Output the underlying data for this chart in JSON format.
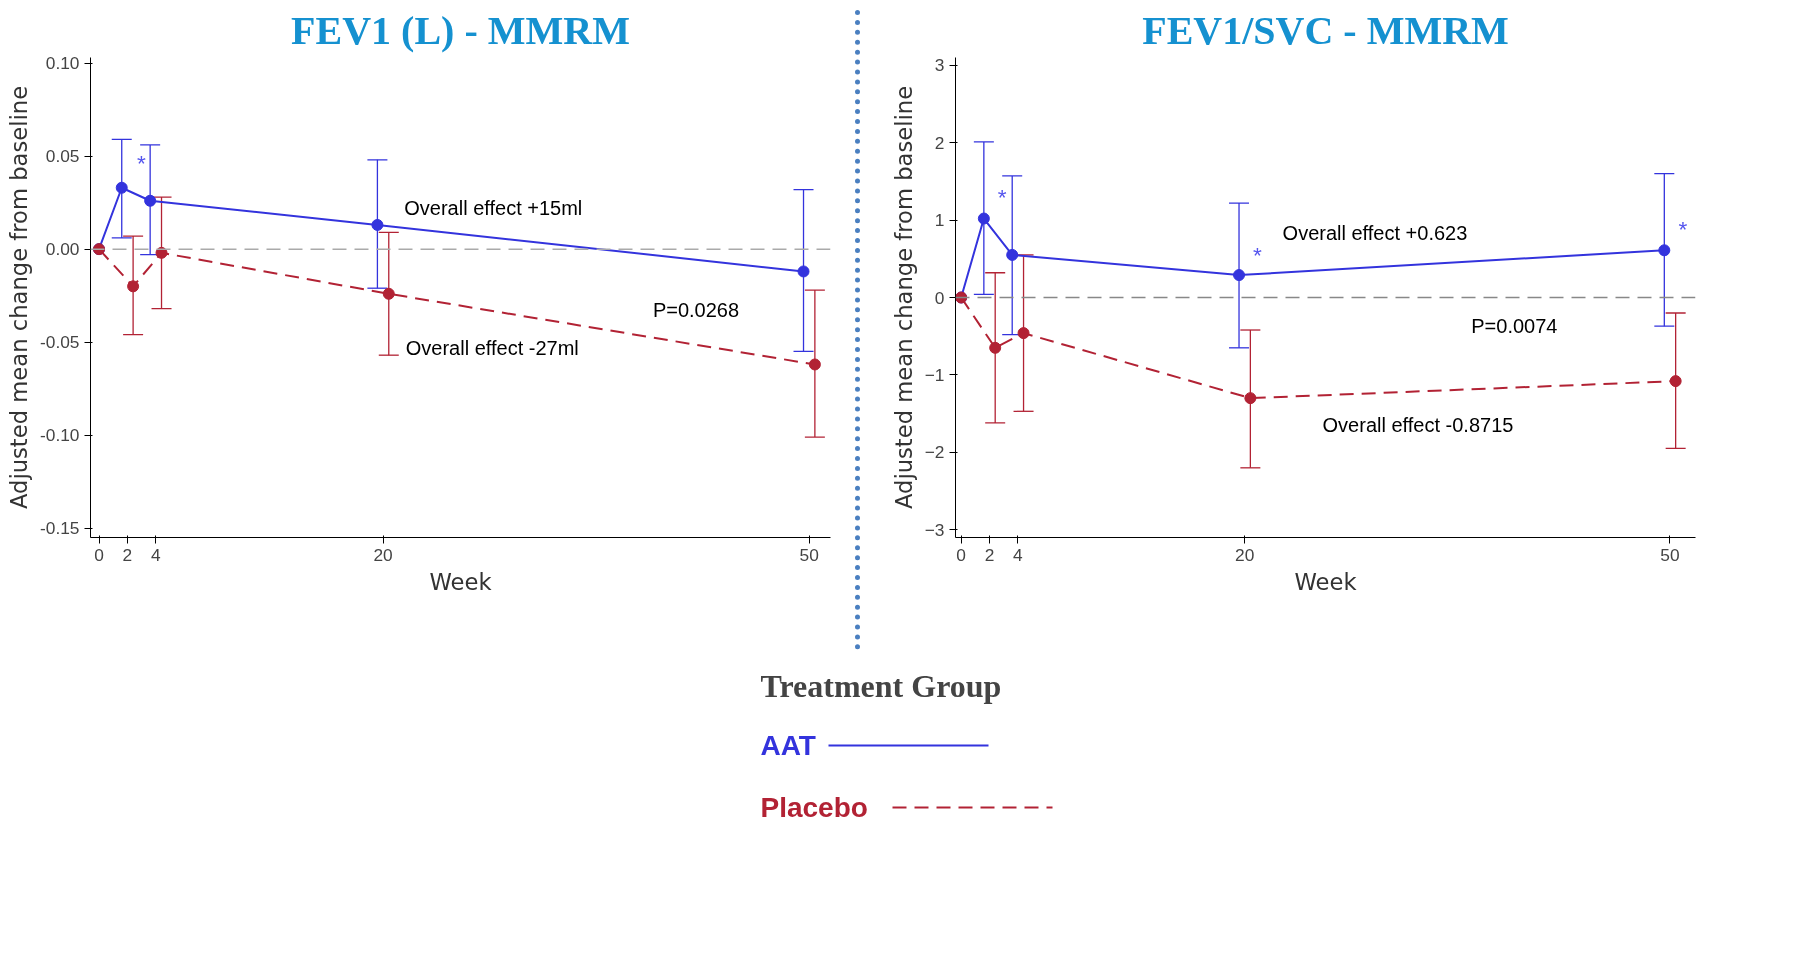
{
  "chart_data": [
    {
      "type": "line",
      "title": "FEV1 (L) - MMRM",
      "xlabel": "Week",
      "ylabel": "Adjusted mean change from baseline",
      "legend_title": "Treatment Group",
      "legend": "bottom",
      "marker": "circle",
      "grid": false,
      "xlim": [
        -0.6,
        51.5
      ],
      "xticks": [
        0,
        2,
        4,
        20,
        50
      ],
      "ylim": [
        -0.155,
        0.103
      ],
      "yticks": [
        {
          "value": 0.1,
          "label": "0.10"
        },
        {
          "value": 0.05,
          "label": "0.05"
        },
        {
          "value": 0,
          "label": "0.00"
        },
        {
          "value": -0.05,
          "label": "-0.05"
        },
        {
          "value": -0.1,
          "label": "-0.10"
        },
        {
          "value": -0.15,
          "label": "-0.15"
        }
      ],
      "ref_lines": [
        {
          "axis": "y",
          "value": 0,
          "color": "#aaaaaa",
          "line_style": "dashed"
        }
      ],
      "series": [
        {
          "name": "AAT",
          "color": "#3333dd",
          "line_style": "solid",
          "x": [
            0,
            1.6,
            3.6,
            19.6,
            49.6
          ],
          "values": [
            0,
            0.033,
            0.026,
            0.013,
            -0.012
          ],
          "errors": [
            null,
            [
              0.006,
              0.059
            ],
            [
              -0.003,
              0.056
            ],
            [
              -0.021,
              0.048
            ],
            [
              -0.055,
              0.032
            ]
          ]
        },
        {
          "name": "Placebo",
          "color": "#b22234",
          "line_style": "dashed",
          "x": [
            0,
            2.4,
            4.4,
            20.4,
            50.4
          ],
          "values": [
            0,
            -0.02,
            -0.002,
            -0.024,
            -0.062
          ],
          "errors": [
            null,
            [
              -0.046,
              0.007
            ],
            [
              -0.032,
              0.028
            ],
            [
              -0.057,
              0.009
            ],
            [
              -0.101,
              -0.022
            ]
          ]
        }
      ],
      "annotations": [
        "*",
        "Overall effect +15ml",
        "Overall effect  -27ml",
        "P=0.0268"
      ]
    },
    {
      "type": "line",
      "title": "FEV1/SVC - MMRM",
      "xlabel": "Week",
      "ylabel": "Adjusted mean change from baseline",
      "legend": false,
      "marker": "circle",
      "grid": false,
      "xlim": [
        -0.4,
        51.8
      ],
      "xticks": [
        0,
        2,
        4,
        20,
        50
      ],
      "ylim": [
        -3.1,
        3.1
      ],
      "yticks": [
        -3,
        -2,
        -1,
        0,
        1,
        2,
        3
      ],
      "ref_lines": [
        {
          "axis": "y",
          "value": 0,
          "color": "#888888",
          "line_style": "dashed"
        }
      ],
      "series": [
        {
          "color": "#3333dd",
          "line_style": "solid",
          "x": [
            0,
            1.6,
            3.6,
            19.6,
            49.6
          ],
          "values": [
            0,
            1.02,
            0.55,
            0.29,
            0.61
          ],
          "errors": [
            null,
            [
              0.04,
              2.01
            ],
            [
              -0.48,
              1.57
            ],
            [
              -0.65,
              1.22
            ],
            [
              -0.37,
              1.6
            ]
          ]
        },
        {
          "color": "#b22234",
          "line_style": "dashed",
          "x": [
            0,
            2.4,
            4.4,
            20.4,
            50.4
          ],
          "values": [
            0,
            -0.65,
            -0.46,
            -1.3,
            -1.08
          ],
          "errors": [
            null,
            [
              -1.62,
              0.32
            ],
            [
              -1.47,
              0.55
            ],
            [
              -2.2,
              -0.42
            ],
            [
              -1.95,
              -0.2
            ]
          ]
        }
      ],
      "annotations": [
        "*",
        "*",
        "*",
        "Overall effect +0.623",
        "Overall effect  -0.8715",
        "P=0.0074"
      ]
    }
  ]
}
